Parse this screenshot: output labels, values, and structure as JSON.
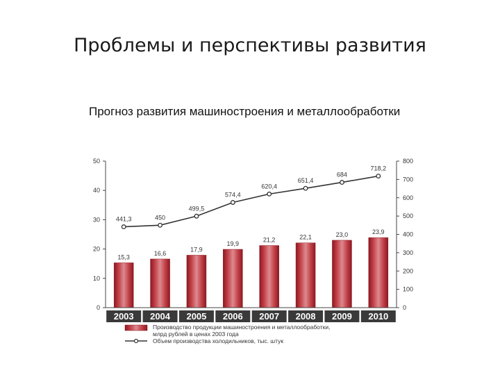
{
  "slide": {
    "title": "Проблемы и перспективы развития",
    "subtitle": "Прогноз развития машиностроения и металлообработки"
  },
  "chart_data": {
    "type": "bar",
    "categories": [
      "2003",
      "2004",
      "2005",
      "2006",
      "2007",
      "2008",
      "2009",
      "2010"
    ],
    "series": [
      {
        "name": "Производство продукции машиностроения и металлообработки, млрд рублей в ценах 2003 года",
        "type": "bar",
        "axis": "left",
        "values": [
          15.3,
          16.6,
          17.9,
          19.9,
          21.2,
          22.1,
          23.0,
          23.9
        ],
        "labels": [
          "15,3",
          "16,6",
          "17,9",
          "19,9",
          "21,2",
          "22,1",
          "23,0",
          "23,9"
        ],
        "color": "#b5222b"
      },
      {
        "name": "Объем производства холодильников, тыс. штук",
        "type": "line",
        "axis": "right",
        "values": [
          441.3,
          450,
          499.5,
          574.4,
          620.4,
          651.4,
          684,
          718.2
        ],
        "labels": [
          "441,3",
          "450",
          "499,5",
          "574,4",
          "620,4",
          "651,4",
          "684",
          "718,2"
        ],
        "color": "#333333"
      }
    ],
    "left_axis": {
      "ylim": [
        0,
        50
      ],
      "ticks": [
        "0",
        "10",
        "20",
        "30",
        "40",
        "50"
      ]
    },
    "right_axis": {
      "ylim": [
        0,
        800
      ],
      "ticks": [
        "0",
        "100",
        "200",
        "300",
        "400",
        "500",
        "600",
        "700",
        "800"
      ]
    },
    "legend_position": "bottom",
    "grid": false
  }
}
